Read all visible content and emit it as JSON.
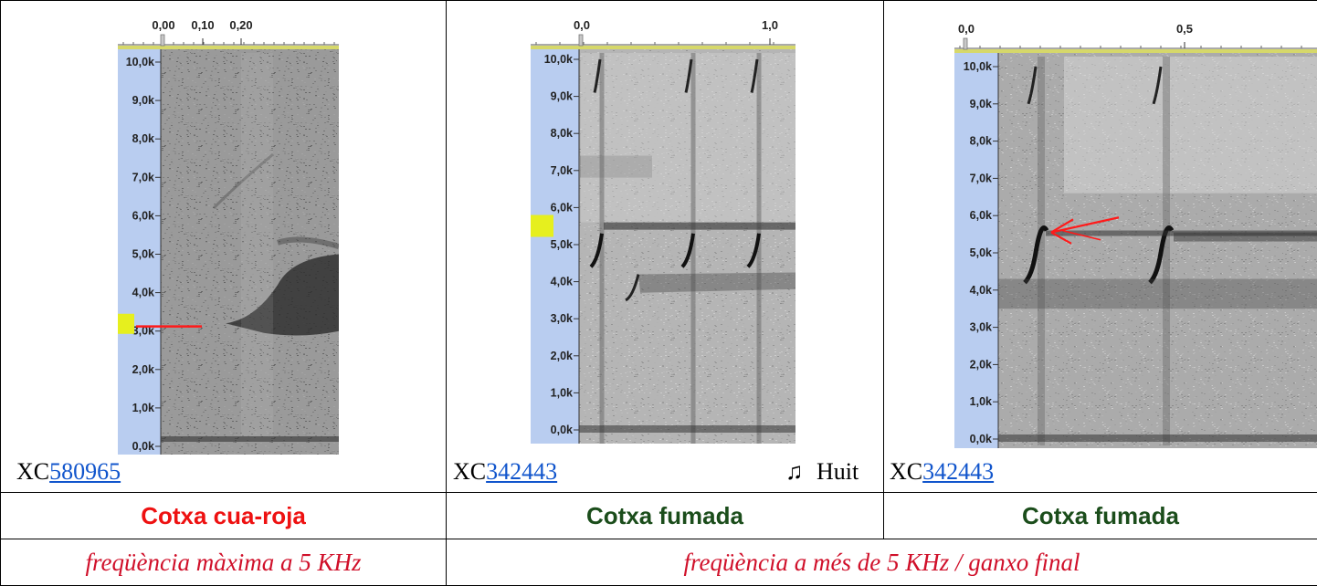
{
  "columns": [
    {
      "xc_prefix": "XC",
      "xc_number": "580965",
      "name": "Cotxa cua-roja",
      "name_color": "#ee1111",
      "time_ticks": [
        "0,00",
        "0,10",
        "0,20"
      ],
      "freq_ticks": [
        "10,0k",
        "9,0k",
        "8,0k",
        "7,0k",
        "6,0k",
        "5,0k",
        "4,0k",
        "3,0k",
        "2,0k",
        "1,0k",
        "0,0k"
      ]
    },
    {
      "xc_prefix": "XC",
      "xc_number": "342443",
      "audio_icon": "♫",
      "audio_label": "Huit",
      "name": "Cotxa fumada",
      "name_color": "#1b4d1b",
      "time_ticks": [
        "0,0",
        "1,0"
      ],
      "freq_ticks": [
        "10,0k",
        "9,0k",
        "8,0k",
        "7,0k",
        "6,0k",
        "5,0k",
        "4,0k",
        "3,0k",
        "2,0k",
        "1,0k",
        "0,0k"
      ]
    },
    {
      "xc_prefix": "XC",
      "xc_number": "342443",
      "name": "Cotxa fumada",
      "name_color": "#1b4d1b",
      "time_ticks": [
        "0,0",
        "0,5"
      ],
      "freq_ticks": [
        "10,0k",
        "9,0k",
        "8,0k",
        "7,0k",
        "6,0k",
        "5,0k",
        "4,0k",
        "3,0k",
        "2,0k",
        "1,0k",
        "0,0k"
      ]
    }
  ],
  "notes": {
    "left": "freqüència màxima a 5 KHz",
    "right": "freqüència a més de 5 KHz / ganxo final"
  },
  "colors": {
    "ruler_bg": "#b9cdf0",
    "highlight": "#e6ef1e",
    "annotation": "#ff1a1a",
    "link": "#1155cc"
  }
}
